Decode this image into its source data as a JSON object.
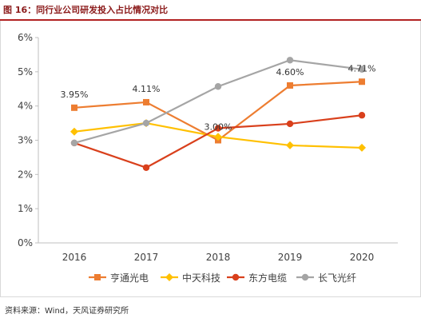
{
  "header": {
    "title": "图 16：同行业公司研发投入占比情况对比"
  },
  "footer": {
    "source": "资料来源：Wind，天风证券研究所"
  },
  "chart_data": {
    "type": "line",
    "title": "图 16：同行业公司研发投入占比情况对比",
    "xlabel": "",
    "ylabel": "",
    "categories": [
      "2016",
      "2017",
      "2018",
      "2019",
      "2020"
    ],
    "ylim": [
      0,
      6
    ],
    "yticks": [
      "0%",
      "1%",
      "2%",
      "3%",
      "4%",
      "5%",
      "6%"
    ],
    "grid": false,
    "legend_position": "bottom",
    "series": [
      {
        "name": "亨通光电",
        "color": "#ed7d31",
        "marker": "square",
        "values": [
          3.95,
          4.11,
          3.0,
          4.6,
          4.71
        ]
      },
      {
        "name": "中天科技",
        "color": "#ffc000",
        "marker": "diamond",
        "values": [
          3.25,
          3.5,
          3.1,
          2.85,
          2.78
        ]
      },
      {
        "name": "东方电缆",
        "color": "#d9401c",
        "marker": "circle",
        "values": [
          2.92,
          2.2,
          3.35,
          3.48,
          3.73
        ]
      },
      {
        "name": "长飞光纤",
        "color": "#a5a5a5",
        "marker": "circle",
        "values": [
          2.92,
          3.5,
          4.57,
          5.34,
          5.07
        ]
      }
    ],
    "annotations": [
      {
        "text": "3.95%",
        "category": "2016",
        "value": 3.95
      },
      {
        "text": "4.11%",
        "category": "2017",
        "value": 4.11
      },
      {
        "text": "3.00%",
        "category": "2018",
        "value": 3.0
      },
      {
        "text": "4.60%",
        "category": "2019",
        "value": 4.6
      },
      {
        "text": "4.71%",
        "category": "2020",
        "value": 4.71
      }
    ]
  }
}
